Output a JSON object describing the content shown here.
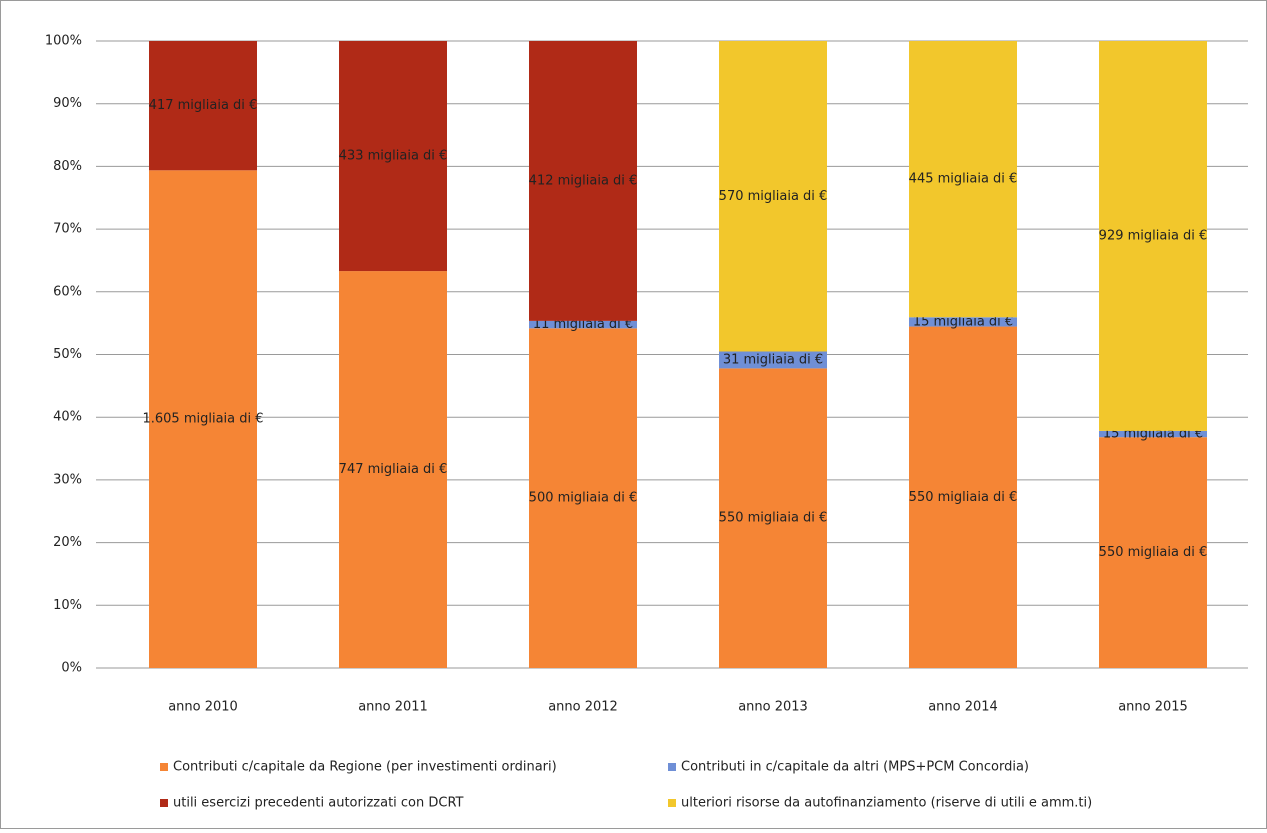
{
  "chart_data": {
    "type": "bar",
    "stack": "percent",
    "categories": [
      "anno 2010",
      "anno 2011",
      "anno 2012",
      "anno 2013",
      "anno 2014",
      "anno 2015"
    ],
    "series": [
      {
        "name": "Contributi c/capitale da Regione (per investimenti ordinari)",
        "color": "#f58535",
        "values": [
          1605,
          747,
          500,
          550,
          550,
          550
        ],
        "value_labels": [
          "1.605 migliaia di €",
          "747 migliaia di €",
          "500 migliaia di €",
          "550 migliaia di €",
          "550 migliaia di €",
          "550 migliaia di €"
        ]
      },
      {
        "name": "Contributi in c/capitale da altri (MPS+PCM Concordia)",
        "color": "#6f8fd6",
        "values": [
          null,
          null,
          11,
          31,
          15,
          15
        ],
        "value_labels": [
          null,
          null,
          "11 migliaia di €",
          "31 migliaia di €",
          "15 migliaia di €",
          "15 migliaia di €"
        ]
      },
      {
        "name": "utili esercizi precedenti autorizzati con DCRT",
        "color": "#b02a17",
        "values": [
          417,
          433,
          412,
          null,
          null,
          null
        ],
        "value_labels": [
          "417 migliaia di €",
          "433 migliaia di €",
          "412 migliaia di €",
          null,
          null,
          null
        ]
      },
      {
        "name": "ulteriori risorse da autofinanziamento (riserve di utili e amm.ti)",
        "color": "#f2c72c",
        "values": [
          null,
          null,
          null,
          570,
          445,
          929
        ],
        "value_labels": [
          null,
          null,
          null,
          "570 migliaia di €",
          "445 migliaia di €",
          "929 migliaia di €"
        ]
      }
    ],
    "ylim": [
      0,
      100
    ],
    "yticks": [
      {
        "value": 0,
        "label": "0%"
      },
      {
        "value": 10,
        "label": "10%"
      },
      {
        "value": 20,
        "label": "20%"
      },
      {
        "value": 30,
        "label": "30%"
      },
      {
        "value": 40,
        "label": "40%"
      },
      {
        "value": 50,
        "label": "50%"
      },
      {
        "value": 60,
        "label": "60%"
      },
      {
        "value": 70,
        "label": "70%"
      },
      {
        "value": 80,
        "label": "80%"
      },
      {
        "value": 90,
        "label": "90%"
      },
      {
        "value": 100,
        "label": "100%"
      }
    ],
    "grid": true,
    "legend": "bottom"
  }
}
